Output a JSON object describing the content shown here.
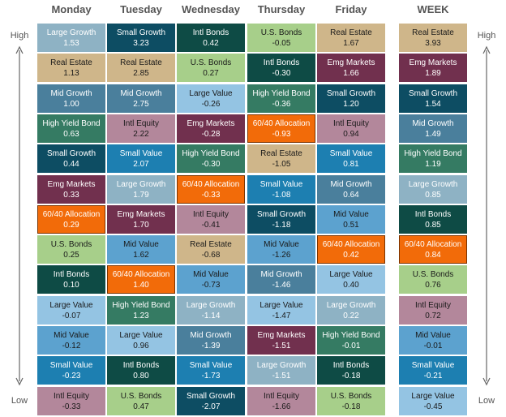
{
  "labels": {
    "high": "High",
    "low": "Low"
  },
  "colors": {
    "Large Growth": "#8eb2c4",
    "Small Growth": "#0d4d63",
    "Intl Bonds": "#0e4b45",
    "U.S. Bonds": "#a7cf8a",
    "Real Estate": "#cfb68a",
    "Mid Growth": "#4a7f9c",
    "Emg Markets": "#71304e",
    "Large Value": "#94c4e3",
    "High Yield Bond": "#357b63",
    "Intl Equity": "#b3879b",
    "Small Value": "#1d7fb1",
    "60/40 Allocation": "#f26b09",
    "Mid Value": "#5ca2cf"
  },
  "text_colors": {
    "Large Growth": "#ffffff",
    "Small Growth": "#ffffff",
    "Intl Bonds": "#ffffff",
    "U.S. Bonds": "#1a1a1a",
    "Real Estate": "#1a1a1a",
    "Mid Growth": "#ffffff",
    "Emg Markets": "#ffffff",
    "Large Value": "#1a1a1a",
    "High Yield Bond": "#ffffff",
    "Intl Equity": "#1a1a1a",
    "Small Value": "#ffffff",
    "60/40 Allocation": "#ffffff",
    "Mid Value": "#1a1a1a"
  },
  "highlight": "60/40 Allocation",
  "chart_data": {
    "type": "table",
    "columns": [
      {
        "header": "Monday",
        "cells": [
          {
            "name": "Large Growth",
            "value": "1.53"
          },
          {
            "name": "Real Estate",
            "value": "1.13"
          },
          {
            "name": "Mid Growth",
            "value": "1.00"
          },
          {
            "name": "High Yield Bond",
            "value": "0.63"
          },
          {
            "name": "Small Growth",
            "value": "0.44"
          },
          {
            "name": "Emg Markets",
            "value": "0.33"
          },
          {
            "name": "60/40 Allocation",
            "value": "0.29"
          },
          {
            "name": "U.S. Bonds",
            "value": "0.25"
          },
          {
            "name": "Intl Bonds",
            "value": "0.10"
          },
          {
            "name": "Large Value",
            "value": "-0.07"
          },
          {
            "name": "Mid Value",
            "value": "-0.12"
          },
          {
            "name": "Small Value",
            "value": "-0.23"
          },
          {
            "name": "Intl Equity",
            "value": "-0.33"
          }
        ]
      },
      {
        "header": "Tuesday",
        "cells": [
          {
            "name": "Small Growth",
            "value": "3.23"
          },
          {
            "name": "Real Estate",
            "value": "2.85"
          },
          {
            "name": "Mid Growth",
            "value": "2.75"
          },
          {
            "name": "Intl Equity",
            "value": "2.22"
          },
          {
            "name": "Small Value",
            "value": "2.07"
          },
          {
            "name": "Large Growth",
            "value": "1.79"
          },
          {
            "name": "Emg Markets",
            "value": "1.70"
          },
          {
            "name": "Mid Value",
            "value": "1.62"
          },
          {
            "name": "60/40 Allocation",
            "value": "1.40"
          },
          {
            "name": "High Yield Bond",
            "value": "1.23"
          },
          {
            "name": "Large Value",
            "value": "0.96"
          },
          {
            "name": "Intl Bonds",
            "value": "0.80"
          },
          {
            "name": "U.S. Bonds",
            "value": "0.47"
          }
        ]
      },
      {
        "header": "Wednesday",
        "cells": [
          {
            "name": "Intl Bonds",
            "value": "0.42"
          },
          {
            "name": "U.S. Bonds",
            "value": "0.27"
          },
          {
            "name": "Large Value",
            "value": "-0.26"
          },
          {
            "name": "Emg Markets",
            "value": "-0.28"
          },
          {
            "name": "High Yield Bond",
            "value": "-0.30"
          },
          {
            "name": "60/40 Allocation",
            "value": "-0.33"
          },
          {
            "name": "Intl Equity",
            "value": "-0.41"
          },
          {
            "name": "Real Estate",
            "value": "-0.68"
          },
          {
            "name": "Mid Value",
            "value": "-0.73"
          },
          {
            "name": "Large Growth",
            "value": "-1.14"
          },
          {
            "name": "Mid Growth",
            "value": "-1.39"
          },
          {
            "name": "Small Value",
            "value": "-1.73"
          },
          {
            "name": "Small Growth",
            "value": "-2.07"
          }
        ]
      },
      {
        "header": "Thursday",
        "cells": [
          {
            "name": "U.S. Bonds",
            "value": "-0.05"
          },
          {
            "name": "Intl Bonds",
            "value": "-0.30"
          },
          {
            "name": "High Yield Bond",
            "value": "-0.36"
          },
          {
            "name": "60/40 Allocation",
            "value": "-0.93"
          },
          {
            "name": "Real Estate",
            "value": "-1.05"
          },
          {
            "name": "Small Value",
            "value": "-1.08"
          },
          {
            "name": "Small Growth",
            "value": "-1.18"
          },
          {
            "name": "Mid Value",
            "value": "-1.26"
          },
          {
            "name": "Mid Growth",
            "value": "-1.46"
          },
          {
            "name": "Large Value",
            "value": "-1.47"
          },
          {
            "name": "Emg Markets",
            "value": "-1.51"
          },
          {
            "name": "Large Growth",
            "value": "-1.51"
          },
          {
            "name": "Intl Equity",
            "value": "-1.66"
          }
        ]
      },
      {
        "header": "Friday",
        "cells": [
          {
            "name": "Real Estate",
            "value": "1.67"
          },
          {
            "name": "Emg Markets",
            "value": "1.66"
          },
          {
            "name": "Small Growth",
            "value": "1.20"
          },
          {
            "name": "Intl Equity",
            "value": "0.94"
          },
          {
            "name": "Small Value",
            "value": "0.81"
          },
          {
            "name": "Mid Growth",
            "value": "0.64"
          },
          {
            "name": "Mid Value",
            "value": "0.51"
          },
          {
            "name": "60/40 Allocation",
            "value": "0.42"
          },
          {
            "name": "Large Value",
            "value": "0.40"
          },
          {
            "name": "Large Growth",
            "value": "0.22"
          },
          {
            "name": "High Yield Bond",
            "value": "-0.01"
          },
          {
            "name": "Intl Bonds",
            "value": "-0.18"
          },
          {
            "name": "U.S. Bonds",
            "value": "-0.18"
          }
        ]
      },
      {
        "header": "WEEK",
        "cells": [
          {
            "name": "Real Estate",
            "value": "3.93"
          },
          {
            "name": "Emg Markets",
            "value": "1.89"
          },
          {
            "name": "Small Growth",
            "value": "1.54"
          },
          {
            "name": "Mid Growth",
            "value": "1.49"
          },
          {
            "name": "High Yield Bond",
            "value": "1.19"
          },
          {
            "name": "Large Growth",
            "value": "0.85"
          },
          {
            "name": "Intl Bonds",
            "value": "0.85"
          },
          {
            "name": "60/40 Allocation",
            "value": "0.84"
          },
          {
            "name": "U.S. Bonds",
            "value": "0.76"
          },
          {
            "name": "Intl Equity",
            "value": "0.72"
          },
          {
            "name": "Mid Value",
            "value": "-0.01"
          },
          {
            "name": "Small Value",
            "value": "-0.21"
          },
          {
            "name": "Large Value",
            "value": "-0.45"
          }
        ]
      }
    ]
  }
}
